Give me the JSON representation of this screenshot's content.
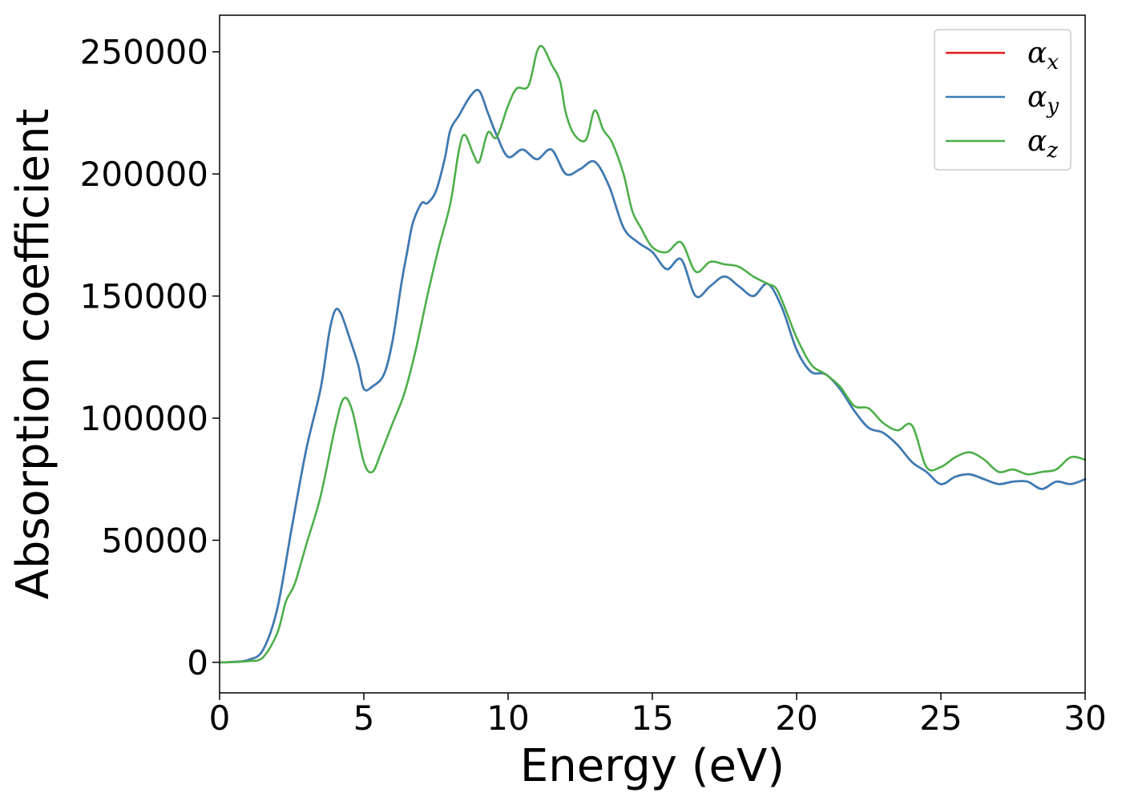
{
  "chart_data": {
    "type": "line",
    "xlabel": "Energy (eV)",
    "ylabel": "Absorption coefficient",
    "xlim": [
      0,
      30
    ],
    "ylim": [
      -12500,
      265000
    ],
    "xticks": [
      0,
      5,
      10,
      15,
      20,
      25,
      30
    ],
    "xtick_labels": [
      "0",
      "5",
      "10",
      "15",
      "20",
      "25",
      "30"
    ],
    "yticks": [
      0,
      50000,
      100000,
      150000,
      200000,
      250000
    ],
    "ytick_labels": [
      "0",
      "50000",
      "100000",
      "150000",
      "200000",
      "250000"
    ],
    "grid": false,
    "legend_position": "top-right",
    "series": [
      {
        "name": "α",
        "sub": "x",
        "color": "#e41a1c",
        "x": [
          0,
          0.5,
          1,
          1.5,
          2,
          2.5,
          3,
          3.5,
          3.8,
          4,
          4.2,
          4.5,
          4.8,
          5,
          5.3,
          5.7,
          6,
          6.3,
          6.5,
          6.7,
          7,
          7.2,
          7.5,
          7.8,
          8,
          8.3,
          8.7,
          9,
          9.3,
          9.6,
          10,
          10.5,
          11,
          11.5,
          12,
          12.5,
          13,
          13.5,
          14,
          14.5,
          15,
          15.5,
          16,
          16.5,
          17,
          17.5,
          18,
          18.5,
          19,
          19.5,
          20,
          20.5,
          21,
          21.5,
          22,
          22.5,
          23,
          23.5,
          24,
          24.5,
          25,
          25.5,
          26,
          26.5,
          27,
          27.5,
          28,
          28.5,
          29,
          29.5,
          30
        ],
        "y": [
          0,
          200,
          1000,
          5000,
          22000,
          55000,
          87000,
          112000,
          135000,
          144000,
          143000,
          133000,
          122000,
          112000,
          113000,
          118000,
          132000,
          155000,
          168000,
          180000,
          188000,
          188000,
          193000,
          206000,
          218000,
          224000,
          232000,
          234000,
          225000,
          216000,
          207000,
          210000,
          206000,
          210000,
          200000,
          202000,
          205000,
          195000,
          178000,
          172000,
          168000,
          161000,
          165000,
          150000,
          154000,
          158000,
          154000,
          150000,
          155000,
          145000,
          128000,
          119000,
          118000,
          112000,
          103000,
          96000,
          94000,
          89000,
          82000,
          78000,
          73000,
          76000,
          77000,
          75000,
          73000,
          74000,
          74000,
          71000,
          74000,
          73000,
          75000
        ]
      },
      {
        "name": "α",
        "sub": "y",
        "color": "#377eb8",
        "x": [
          0,
          0.5,
          1,
          1.5,
          2,
          2.5,
          3,
          3.5,
          3.8,
          4,
          4.2,
          4.5,
          4.8,
          5,
          5.3,
          5.7,
          6,
          6.3,
          6.5,
          6.7,
          7,
          7.2,
          7.5,
          7.8,
          8,
          8.3,
          8.7,
          9,
          9.3,
          9.6,
          10,
          10.5,
          11,
          11.5,
          12,
          12.5,
          13,
          13.5,
          14,
          14.5,
          15,
          15.5,
          16,
          16.5,
          17,
          17.5,
          18,
          18.5,
          19,
          19.5,
          20,
          20.5,
          21,
          21.5,
          22,
          22.5,
          23,
          23.5,
          24,
          24.5,
          25,
          25.5,
          26,
          26.5,
          27,
          27.5,
          28,
          28.5,
          29,
          29.5,
          30
        ],
        "y": [
          0,
          200,
          1000,
          5000,
          22000,
          55000,
          87000,
          112000,
          135000,
          144000,
          143000,
          133000,
          122000,
          112000,
          113000,
          118000,
          132000,
          155000,
          168000,
          180000,
          188000,
          188000,
          193000,
          206000,
          218000,
          224000,
          232000,
          234000,
          225000,
          216000,
          207000,
          210000,
          206000,
          210000,
          200000,
          202000,
          205000,
          195000,
          178000,
          172000,
          168000,
          161000,
          165000,
          150000,
          154000,
          158000,
          154000,
          150000,
          155000,
          145000,
          128000,
          119000,
          118000,
          112000,
          103000,
          96000,
          94000,
          89000,
          82000,
          78000,
          73000,
          76000,
          77000,
          75000,
          73000,
          74000,
          74000,
          71000,
          74000,
          73000,
          75000
        ]
      },
      {
        "name": "α",
        "sub": "z",
        "color": "#4daf4a",
        "x": [
          0,
          0.5,
          1,
          1.5,
          2,
          2.3,
          2.6,
          3,
          3.5,
          4,
          4.3,
          4.6,
          5,
          5.3,
          5.6,
          6,
          6.4,
          6.8,
          7.2,
          7.6,
          8,
          8.3,
          8.5,
          8.8,
          9,
          9.3,
          9.6,
          10,
          10.3,
          10.7,
          11,
          11.2,
          11.5,
          11.8,
          12,
          12.3,
          12.7,
          13,
          13.3,
          13.6,
          14,
          14.3,
          14.6,
          15,
          15.5,
          16,
          16.5,
          17,
          17.5,
          18,
          18.5,
          19,
          19.3,
          19.6,
          20,
          20.5,
          21,
          21.5,
          22,
          22.5,
          23,
          23.5,
          24,
          24.5,
          25,
          25.5,
          26,
          26.5,
          27,
          27.5,
          28,
          28.5,
          29,
          29.5,
          30
        ],
        "y": [
          0,
          100,
          500,
          2000,
          12000,
          25000,
          32000,
          48000,
          68000,
          96000,
          108000,
          103000,
          82000,
          78000,
          86000,
          98000,
          110000,
          128000,
          150000,
          170000,
          188000,
          210000,
          216000,
          208000,
          205000,
          217000,
          215000,
          228000,
          235000,
          236000,
          250000,
          252000,
          245000,
          238000,
          225000,
          216000,
          214000,
          226000,
          218000,
          213000,
          200000,
          185000,
          178000,
          170000,
          168000,
          172000,
          160000,
          164000,
          163000,
          162000,
          158000,
          155000,
          153000,
          145000,
          133000,
          122000,
          118000,
          113000,
          105000,
          104000,
          98000,
          95000,
          97000,
          80000,
          80000,
          84000,
          86000,
          83000,
          78000,
          79000,
          77000,
          78000,
          79000,
          84000,
          83000
        ]
      }
    ]
  }
}
